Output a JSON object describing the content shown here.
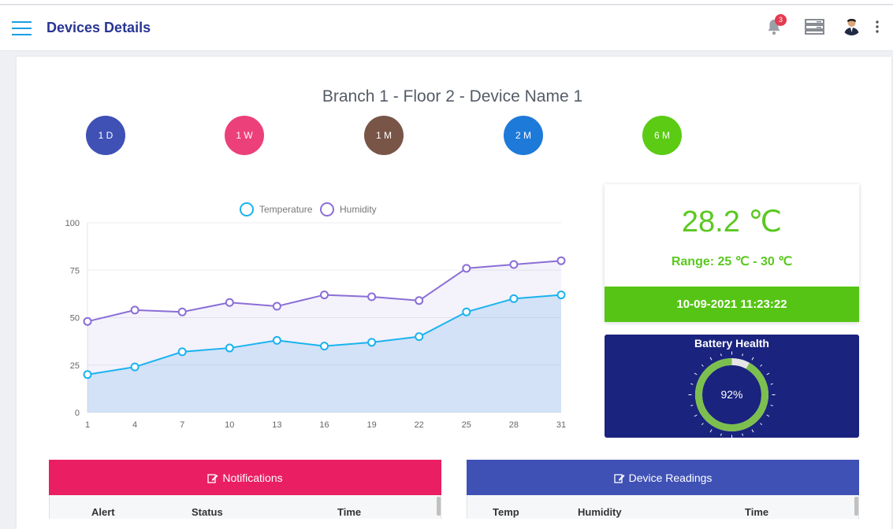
{
  "header": {
    "title": "Devices Details",
    "notification_count": "3",
    "icons": [
      "menu-icon",
      "bell-icon",
      "server-icon",
      "avatar",
      "more-vertical-icon"
    ]
  },
  "device": {
    "title": "Branch 1 - Floor 2 - Device Name 1"
  },
  "periods": [
    {
      "label": "1 D",
      "color": "#3f51b5"
    },
    {
      "label": "1 W",
      "color": "#ec407a"
    },
    {
      "label": "1 M",
      "color": "#795548"
    },
    {
      "label": "2 M",
      "color": "#1e7ad8"
    },
    {
      "label": "6 M",
      "color": "#5bcb14"
    }
  ],
  "chart_data": {
    "type": "line",
    "x": [
      1,
      4,
      7,
      10,
      13,
      16,
      19,
      22,
      25,
      28,
      31
    ],
    "series": [
      {
        "name": "Temperature",
        "values": [
          20,
          24,
          32,
          34,
          38,
          35,
          37,
          40,
          53,
          60,
          62
        ],
        "color": "#1ab3ef"
      },
      {
        "name": "Humidity",
        "values": [
          48,
          54,
          53,
          58,
          56,
          62,
          61,
          59,
          76,
          78,
          80
        ],
        "color": "#8a6ed6"
      }
    ],
    "yticks": [
      0,
      25,
      50,
      75,
      100
    ],
    "ylim": [
      0,
      100
    ],
    "legend": "top"
  },
  "temperature": {
    "value": "28.2 ℃",
    "range": "Range: 25 ℃ - 30 ℃",
    "timestamp": "10-09-2021 11:23:22"
  },
  "battery": {
    "title": "Battery Health",
    "percent_label": "92%",
    "percent": 92
  },
  "notifications": {
    "title": "Notifications",
    "columns": [
      "Alert",
      "Status",
      "Time"
    ]
  },
  "readings": {
    "title": "Device Readings",
    "columns": [
      "Temp",
      "Humidity",
      "Time"
    ]
  }
}
